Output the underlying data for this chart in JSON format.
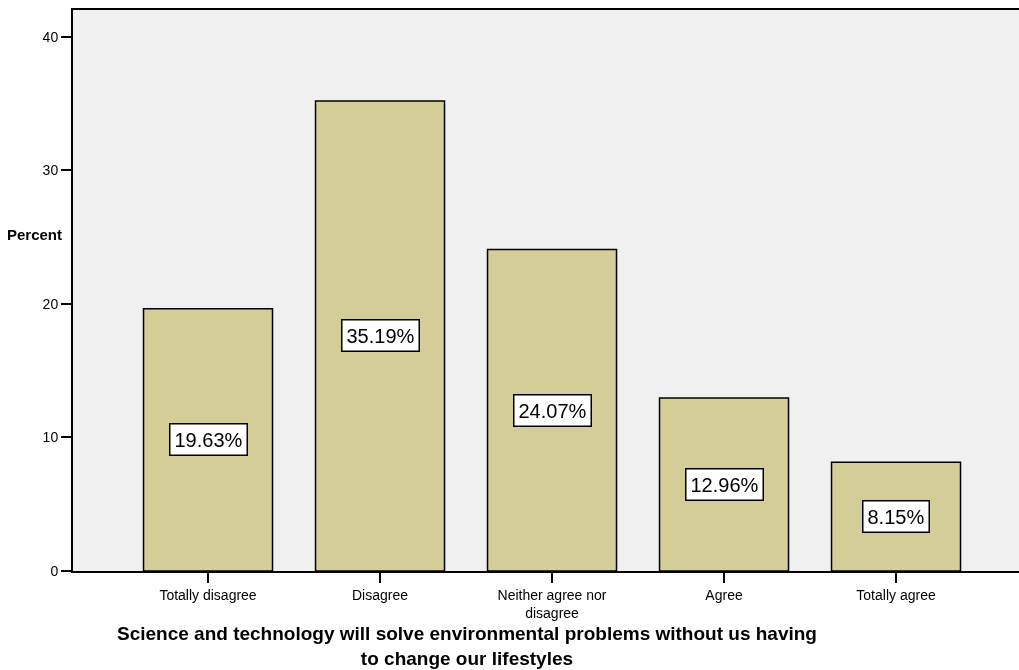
{
  "chart_data": {
    "type": "bar",
    "xlabel": "Science and technology will solve environmental problems without us having to change our lifestyles",
    "ylabel": "Percent",
    "categories": [
      "Totally disagree",
      "Disagree",
      "Neither agree nor disagree",
      "Agree",
      "Totally agree"
    ],
    "values": [
      19.63,
      35.19,
      24.07,
      12.96,
      8.15
    ],
    "value_labels": [
      "19.63%",
      "35.19%",
      "24.07%",
      "12.96%",
      "8.15%"
    ],
    "color": "#d3ce98",
    "ylim": [
      0,
      42
    ],
    "yticks": [
      0,
      10,
      20,
      30,
      40
    ],
    "grid": false
  }
}
